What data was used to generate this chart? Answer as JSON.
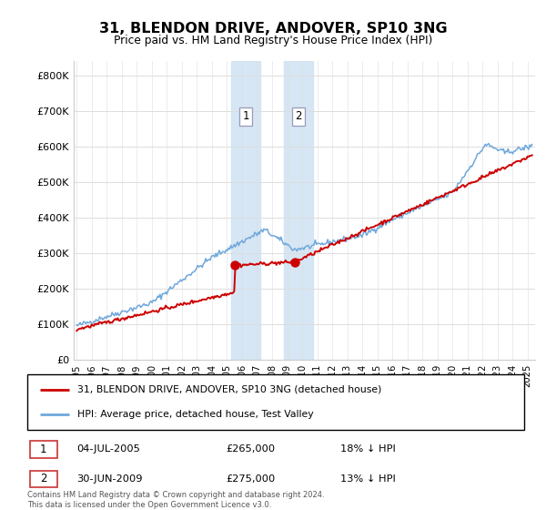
{
  "title": "31, BLENDON DRIVE, ANDOVER, SP10 3NG",
  "subtitle": "Price paid vs. HM Land Registry's House Price Index (HPI)",
  "ylabel_ticks": [
    "£0",
    "£100K",
    "£200K",
    "£300K",
    "£400K",
    "£500K",
    "£600K",
    "£700K",
    "£800K"
  ],
  "ytick_values": [
    0,
    100000,
    200000,
    300000,
    400000,
    500000,
    600000,
    700000,
    800000
  ],
  "ylim": [
    0,
    840000
  ],
  "xlim_start": 1994.8,
  "xlim_end": 2025.5,
  "hpi_color": "#6fa8dc",
  "price_color": "#cc0000",
  "sale1_x": 2005.5,
  "sale1_y": 265000,
  "sale1_label": "1",
  "sale2_x": 2009.5,
  "sale2_y": 275000,
  "sale2_label": "2",
  "shade1_x_start": 2005.3,
  "shade1_x_end": 2007.2,
  "shade2_x_start": 2008.8,
  "shade2_x_end": 2010.7,
  "legend_line1": "31, BLENDON DRIVE, ANDOVER, SP10 3NG (detached house)",
  "legend_line2": "HPI: Average price, detached house, Test Valley",
  "note1_label": "1",
  "note1_date": "04-JUL-2005",
  "note1_price": "£265,000",
  "note1_info": "18% ↓ HPI",
  "note2_label": "2",
  "note2_date": "30-JUN-2009",
  "note2_price": "£275,000",
  "note2_info": "13% ↓ HPI",
  "footer": "Contains HM Land Registry data © Crown copyright and database right 2024.\nThis data is licensed under the Open Government Licence v3.0."
}
